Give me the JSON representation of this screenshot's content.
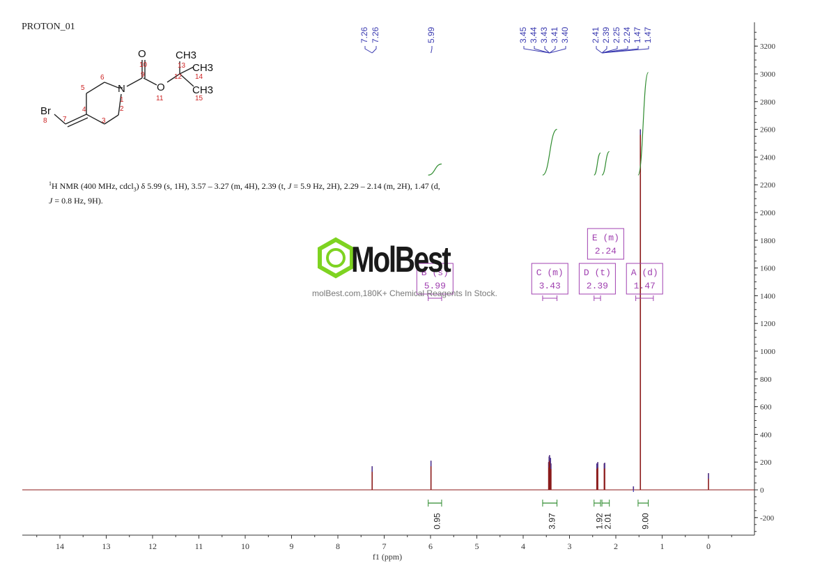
{
  "title": "PROTON_01",
  "summary": {
    "prefix_sup": "1",
    "prefix": "H NMR (400 MHz, cdcl",
    "sub3": "3",
    "text_a": ") δ 5.99 (s, 1H), 3.57 – 3.27 (m, 4H), 2.39 (t, ",
    "j1": "J",
    "text_b": " = 5.9 Hz, 2H), 2.29 – 2.14 (m, 2H), 1.47 (d, ",
    "j2": "J",
    "text_c": " = 0.8 Hz, 9H)."
  },
  "watermark": {
    "brand": "MolBest",
    "tagline": "molBest.com,180K+ Chemical Reagents In Stock."
  },
  "molecule": {
    "atoms": [
      "O",
      "CH3",
      "CH3",
      "CH3",
      "N",
      "O",
      "Br"
    ],
    "numbers": [
      "10",
      "9",
      "13",
      "14",
      "12",
      "15",
      "11",
      "6",
      "5",
      "1",
      "2",
      "4",
      "3",
      "7",
      "8"
    ]
  },
  "colors": {
    "spectrum": "#8b1a1a",
    "integral": "#2e8b2e",
    "peak_label": "#3a3ab0",
    "multiplet": "#a040b0",
    "axis": "#333333",
    "atom_number": "#cc2222"
  },
  "chart_data": {
    "type": "line",
    "xlabel": "f1 (ppm)",
    "xlim": [
      14.8,
      -1.0
    ],
    "ylim": [
      -300,
      3350
    ],
    "x_ticks": [
      "14",
      "13",
      "12",
      "11",
      "10",
      "9",
      "8",
      "7",
      "6",
      "5",
      "4",
      "3",
      "2",
      "1",
      "0"
    ],
    "y_ticks": [
      "3200",
      "3000",
      "2800",
      "2600",
      "2400",
      "2200",
      "2000",
      "1800",
      "1600",
      "1400",
      "1200",
      "1000",
      "800",
      "600",
      "400",
      "200",
      "0",
      "-200"
    ],
    "peaks": [
      {
        "ppm": 7.26,
        "height": 170
      },
      {
        "ppm": 5.99,
        "height": 210
      },
      {
        "ppm": 3.45,
        "height": 200
      },
      {
        "ppm": 3.44,
        "height": 240
      },
      {
        "ppm": 3.43,
        "height": 250
      },
      {
        "ppm": 3.41,
        "height": 230
      },
      {
        "ppm": 3.4,
        "height": 190
      },
      {
        "ppm": 2.41,
        "height": 190
      },
      {
        "ppm": 2.39,
        "height": 200
      },
      {
        "ppm": 2.25,
        "height": 190
      },
      {
        "ppm": 2.24,
        "height": 195
      },
      {
        "ppm": 1.62,
        "height": 25
      },
      {
        "ppm": 1.47,
        "height": 2600
      },
      {
        "ppm": 0.0,
        "height": 120
      }
    ],
    "peak_labels": {
      "group1": [
        "7.26",
        "7.26"
      ],
      "group2": [
        "5.99"
      ],
      "group3": [
        "3.45",
        "3.44",
        "3.43",
        "3.41",
        "3.40"
      ],
      "group4": [
        "2.41",
        "2.39",
        "2.25",
        "2.24",
        "1.47",
        "1.47"
      ]
    },
    "integrals": [
      {
        "from": 6.05,
        "to": 5.76,
        "value": "0.95",
        "y_start": 2270,
        "y_end": 2350
      },
      {
        "from": 3.58,
        "to": 3.27,
        "value": "3.97",
        "y_start": 2270,
        "y_end": 2600
      },
      {
        "from": 2.47,
        "to": 2.33,
        "value": "1.92",
        "y_start": 2270,
        "y_end": 2430
      },
      {
        "from": 2.3,
        "to": 2.14,
        "value": "2.01",
        "y_start": 2270,
        "y_end": 2440
      },
      {
        "from": 1.52,
        "to": 1.3,
        "value": "9.00",
        "y_start": 2270,
        "y_end": 3010
      }
    ],
    "multiplets": [
      {
        "letter": "B",
        "type": "(s)",
        "shift": "5.99",
        "from": 6.05,
        "to": 5.76
      },
      {
        "letter": "C",
        "type": "(m)",
        "shift": "3.43",
        "from": 3.58,
        "to": 3.27
      },
      {
        "letter": "D",
        "type": "(t)",
        "shift": "2.39",
        "from": 2.47,
        "to": 2.33
      },
      {
        "letter": "E",
        "type": "(m)",
        "shift": "2.24",
        "from": 2.3,
        "to": 2.14
      },
      {
        "letter": "A",
        "type": "(d)",
        "shift": "1.47",
        "from": 1.57,
        "to": 1.19
      }
    ]
  }
}
